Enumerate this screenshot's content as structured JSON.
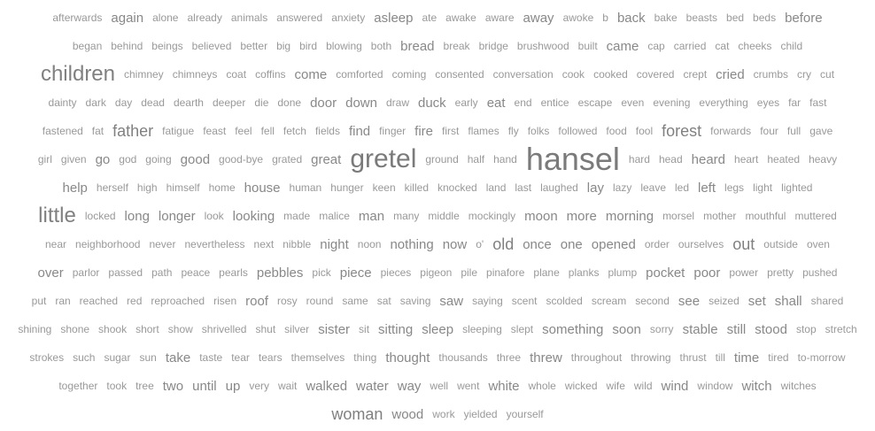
{
  "rows": [
    [
      [
        "afterwards",
        1
      ],
      [
        "again",
        2
      ],
      [
        "alone",
        1
      ],
      [
        "already",
        1
      ],
      [
        "animals",
        1
      ],
      [
        "answered",
        1
      ],
      [
        "anxiety",
        1
      ],
      [
        "asleep",
        2
      ],
      [
        "ate",
        1
      ],
      [
        "awake",
        1
      ],
      [
        "aware",
        1
      ],
      [
        "away",
        2
      ],
      [
        "awoke",
        1
      ],
      [
        "b",
        1
      ],
      [
        "back",
        2
      ],
      [
        "bake",
        1
      ],
      [
        "beasts",
        1
      ],
      [
        "bed",
        1
      ],
      [
        "beds",
        1
      ],
      [
        "before",
        2
      ]
    ],
    [
      [
        "began",
        1
      ],
      [
        "behind",
        1
      ],
      [
        "beings",
        1
      ],
      [
        "believed",
        1
      ],
      [
        "better",
        1
      ],
      [
        "big",
        1
      ],
      [
        "bird",
        1
      ],
      [
        "blowing",
        1
      ],
      [
        "both",
        1
      ],
      [
        "bread",
        2
      ],
      [
        "break",
        1
      ],
      [
        "bridge",
        1
      ],
      [
        "brushwood",
        1
      ],
      [
        "built",
        1
      ],
      [
        "came",
        2
      ],
      [
        "cap",
        1
      ],
      [
        "carried",
        1
      ],
      [
        "cat",
        1
      ],
      [
        "cheeks",
        1
      ],
      [
        "child",
        1
      ]
    ],
    [
      [
        "children",
        4
      ],
      [
        "chimney",
        1
      ],
      [
        "chimneys",
        1
      ],
      [
        "coat",
        1
      ],
      [
        "coffins",
        1
      ],
      [
        "come",
        2
      ],
      [
        "comforted",
        1
      ],
      [
        "coming",
        1
      ],
      [
        "consented",
        1
      ],
      [
        "conversation",
        1
      ],
      [
        "cook",
        1
      ],
      [
        "cooked",
        1
      ],
      [
        "covered",
        1
      ],
      [
        "crept",
        1
      ],
      [
        "cried",
        2
      ],
      [
        "crumbs",
        1
      ],
      [
        "cry",
        1
      ],
      [
        "cut",
        1
      ]
    ],
    [
      [
        "dainty",
        1
      ],
      [
        "dark",
        1
      ],
      [
        "day",
        1
      ],
      [
        "dead",
        1
      ],
      [
        "dearth",
        1
      ],
      [
        "deeper",
        1
      ],
      [
        "die",
        1
      ],
      [
        "done",
        1
      ],
      [
        "door",
        2
      ],
      [
        "down",
        2
      ],
      [
        "draw",
        1
      ],
      [
        "duck",
        2
      ],
      [
        "early",
        1
      ],
      [
        "eat",
        2
      ],
      [
        "end",
        1
      ],
      [
        "entice",
        1
      ],
      [
        "escape",
        1
      ],
      [
        "even",
        1
      ],
      [
        "evening",
        1
      ],
      [
        "everything",
        1
      ],
      [
        "eyes",
        1
      ],
      [
        "far",
        1
      ],
      [
        "fast",
        1
      ]
    ],
    [
      [
        "fastened",
        1
      ],
      [
        "fat",
        1
      ],
      [
        "father",
        3
      ],
      [
        "fatigue",
        1
      ],
      [
        "feast",
        1
      ],
      [
        "feel",
        1
      ],
      [
        "fell",
        1
      ],
      [
        "fetch",
        1
      ],
      [
        "fields",
        1
      ],
      [
        "find",
        2
      ],
      [
        "finger",
        1
      ],
      [
        "fire",
        2
      ],
      [
        "first",
        1
      ],
      [
        "flames",
        1
      ],
      [
        "fly",
        1
      ],
      [
        "folks",
        1
      ],
      [
        "followed",
        1
      ],
      [
        "food",
        1
      ],
      [
        "fool",
        1
      ],
      [
        "forest",
        3
      ],
      [
        "forwards",
        1
      ],
      [
        "four",
        1
      ],
      [
        "full",
        1
      ],
      [
        "gave",
        1
      ]
    ],
    [
      [
        "girl",
        1
      ],
      [
        "given",
        1
      ],
      [
        "go",
        2
      ],
      [
        "god",
        1
      ],
      [
        "going",
        1
      ],
      [
        "good",
        2
      ],
      [
        "good-bye",
        1
      ],
      [
        "grated",
        1
      ],
      [
        "great",
        2
      ],
      [
        "gretel",
        5
      ],
      [
        "ground",
        1
      ],
      [
        "half",
        1
      ],
      [
        "hand",
        1
      ],
      [
        "hansel",
        6
      ],
      [
        "hard",
        1
      ],
      [
        "head",
        1
      ],
      [
        "heard",
        2
      ],
      [
        "heart",
        1
      ],
      [
        "heated",
        1
      ],
      [
        "heavy",
        1
      ]
    ],
    [
      [
        "help",
        2
      ],
      [
        "herself",
        1
      ],
      [
        "high",
        1
      ],
      [
        "himself",
        1
      ],
      [
        "home",
        1
      ],
      [
        "house",
        2
      ],
      [
        "human",
        1
      ],
      [
        "hunger",
        1
      ],
      [
        "keen",
        1
      ],
      [
        "killed",
        1
      ],
      [
        "knocked",
        1
      ],
      [
        "land",
        1
      ],
      [
        "last",
        1
      ],
      [
        "laughed",
        1
      ],
      [
        "lay",
        2
      ],
      [
        "lazy",
        1
      ],
      [
        "leave",
        1
      ],
      [
        "led",
        1
      ],
      [
        "left",
        2
      ],
      [
        "legs",
        1
      ],
      [
        "light",
        1
      ],
      [
        "lighted",
        1
      ]
    ],
    [
      [
        "little",
        4
      ],
      [
        "locked",
        1
      ],
      [
        "long",
        2
      ],
      [
        "longer",
        2
      ],
      [
        "look",
        1
      ],
      [
        "looking",
        2
      ],
      [
        "made",
        1
      ],
      [
        "malice",
        1
      ],
      [
        "man",
        2
      ],
      [
        "many",
        1
      ],
      [
        "middle",
        1
      ],
      [
        "mockingly",
        1
      ],
      [
        "moon",
        2
      ],
      [
        "more",
        2
      ],
      [
        "morning",
        2
      ],
      [
        "morsel",
        1
      ],
      [
        "mother",
        1
      ],
      [
        "mouthful",
        1
      ],
      [
        "muttered",
        1
      ]
    ],
    [
      [
        "near",
        1
      ],
      [
        "neighborhood",
        1
      ],
      [
        "never",
        1
      ],
      [
        "nevertheless",
        1
      ],
      [
        "next",
        1
      ],
      [
        "nibble",
        1
      ],
      [
        "night",
        2
      ],
      [
        "noon",
        1
      ],
      [
        "nothing",
        2
      ],
      [
        "now",
        2
      ],
      [
        "o'",
        1
      ],
      [
        "old",
        3
      ],
      [
        "once",
        2
      ],
      [
        "one",
        2
      ],
      [
        "opened",
        2
      ],
      [
        "order",
        1
      ],
      [
        "ourselves",
        1
      ],
      [
        "out",
        3
      ],
      [
        "outside",
        1
      ],
      [
        "oven",
        1
      ]
    ],
    [
      [
        "over",
        2
      ],
      [
        "parlor",
        1
      ],
      [
        "passed",
        1
      ],
      [
        "path",
        1
      ],
      [
        "peace",
        1
      ],
      [
        "pearls",
        1
      ],
      [
        "pebbles",
        2
      ],
      [
        "pick",
        1
      ],
      [
        "piece",
        2
      ],
      [
        "pieces",
        1
      ],
      [
        "pigeon",
        1
      ],
      [
        "pile",
        1
      ],
      [
        "pinafore",
        1
      ],
      [
        "plane",
        1
      ],
      [
        "planks",
        1
      ],
      [
        "plump",
        1
      ],
      [
        "pocket",
        2
      ],
      [
        "poor",
        2
      ],
      [
        "power",
        1
      ],
      [
        "pretty",
        1
      ],
      [
        "pushed",
        1
      ]
    ],
    [
      [
        "put",
        1
      ],
      [
        "ran",
        1
      ],
      [
        "reached",
        1
      ],
      [
        "red",
        1
      ],
      [
        "reproached",
        1
      ],
      [
        "risen",
        1
      ],
      [
        "roof",
        2
      ],
      [
        "rosy",
        1
      ],
      [
        "round",
        1
      ],
      [
        "same",
        1
      ],
      [
        "sat",
        1
      ],
      [
        "saving",
        1
      ],
      [
        "saw",
        2
      ],
      [
        "saying",
        1
      ],
      [
        "scent",
        1
      ],
      [
        "scolded",
        1
      ],
      [
        "scream",
        1
      ],
      [
        "second",
        1
      ],
      [
        "see",
        2
      ],
      [
        "seized",
        1
      ],
      [
        "set",
        2
      ],
      [
        "shall",
        2
      ],
      [
        "shared",
        1
      ]
    ],
    [
      [
        "shining",
        1
      ],
      [
        "shone",
        1
      ],
      [
        "shook",
        1
      ],
      [
        "short",
        1
      ],
      [
        "show",
        1
      ],
      [
        "shrivelled",
        1
      ],
      [
        "shut",
        1
      ],
      [
        "silver",
        1
      ],
      [
        "sister",
        2
      ],
      [
        "sit",
        1
      ],
      [
        "sitting",
        2
      ],
      [
        "sleep",
        2
      ],
      [
        "sleeping",
        1
      ],
      [
        "slept",
        1
      ],
      [
        "something",
        2
      ],
      [
        "soon",
        2
      ],
      [
        "sorry",
        1
      ],
      [
        "stable",
        2
      ],
      [
        "still",
        2
      ],
      [
        "stood",
        2
      ],
      [
        "stop",
        1
      ],
      [
        "stretch",
        1
      ]
    ],
    [
      [
        "strokes",
        1
      ],
      [
        "such",
        1
      ],
      [
        "sugar",
        1
      ],
      [
        "sun",
        1
      ],
      [
        "take",
        2
      ],
      [
        "taste",
        1
      ],
      [
        "tear",
        1
      ],
      [
        "tears",
        1
      ],
      [
        "themselves",
        1
      ],
      [
        "thing",
        1
      ],
      [
        "thought",
        2
      ],
      [
        "thousands",
        1
      ],
      [
        "three",
        1
      ],
      [
        "threw",
        2
      ],
      [
        "throughout",
        1
      ],
      [
        "throwing",
        1
      ],
      [
        "thrust",
        1
      ],
      [
        "till",
        1
      ],
      [
        "time",
        2
      ],
      [
        "tired",
        1
      ],
      [
        "to-morrow",
        1
      ]
    ],
    [
      [
        "together",
        1
      ],
      [
        "took",
        1
      ],
      [
        "tree",
        1
      ],
      [
        "two",
        2
      ],
      [
        "until",
        2
      ],
      [
        "up",
        2
      ],
      [
        "very",
        1
      ],
      [
        "wait",
        1
      ],
      [
        "walked",
        2
      ],
      [
        "water",
        2
      ],
      [
        "way",
        2
      ],
      [
        "well",
        1
      ],
      [
        "went",
        1
      ],
      [
        "white",
        2
      ],
      [
        "whole",
        1
      ],
      [
        "wicked",
        1
      ],
      [
        "wife",
        1
      ],
      [
        "wild",
        1
      ],
      [
        "wind",
        2
      ],
      [
        "window",
        1
      ],
      [
        "witch",
        2
      ],
      [
        "witches",
        1
      ]
    ],
    [
      [
        "woman",
        3
      ],
      [
        "wood",
        2
      ],
      [
        "work",
        1
      ],
      [
        "yielded",
        1
      ],
      [
        "yourself",
        1
      ]
    ]
  ]
}
